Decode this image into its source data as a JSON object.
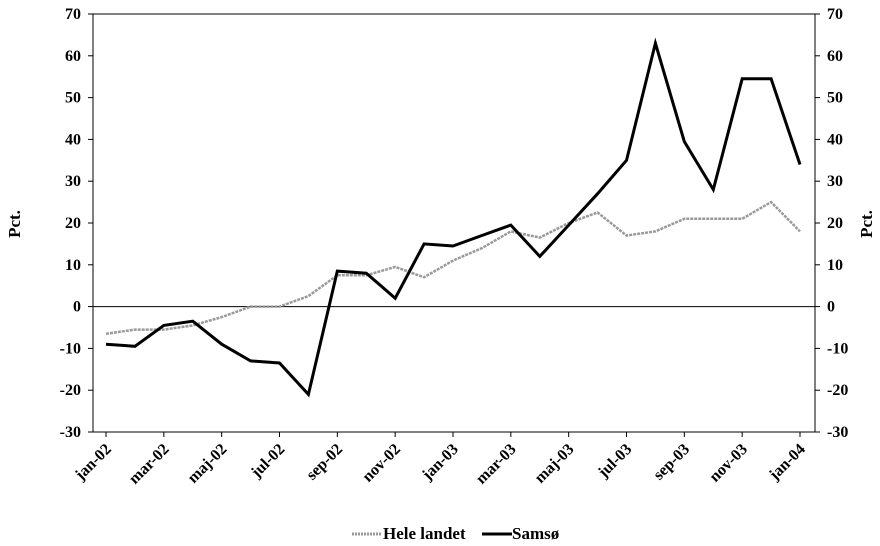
{
  "chart_data": {
    "type": "line",
    "title": "",
    "ylabel_left": "Pct.",
    "ylabel_right": "Pct.",
    "ylim": [
      -30,
      70
    ],
    "yticks": [
      -30,
      -20,
      -10,
      0,
      10,
      20,
      30,
      40,
      50,
      60,
      70
    ],
    "yticks_right": [
      -30,
      -20,
      -10,
      0,
      10,
      20,
      30,
      40,
      50,
      60,
      70
    ],
    "x_labels": [
      "jan-02",
      "mar-02",
      "maj-02",
      "jul-02",
      "sep-02",
      "nov-02",
      "jan-03",
      "mar-03",
      "maj-03",
      "jul-03",
      "sep-03",
      "nov-03",
      "jan-04"
    ],
    "x": [
      "jan-02",
      "feb-02",
      "mar-02",
      "apr-02",
      "maj-02",
      "jun-02",
      "jul-02",
      "aug-02",
      "sep-02",
      "okt-02",
      "nov-02",
      "dec-02",
      "jan-03",
      "feb-03",
      "mar-03",
      "apr-03",
      "maj-03",
      "jun-03",
      "jul-03",
      "aug-03",
      "sep-03",
      "okt-03",
      "nov-03",
      "dec-03",
      "jan-04"
    ],
    "series": [
      {
        "name": "Hele landet",
        "color": "#9a9a9a",
        "values": [
          -6.5,
          -5.5,
          -5.5,
          -4.5,
          -2.5,
          0,
          0,
          2.5,
          7.5,
          7.5,
          9.5,
          7,
          11,
          14,
          18,
          16.5,
          20,
          22.5,
          17,
          18,
          21,
          21,
          21,
          25,
          18
        ]
      },
      {
        "name": "Samsø",
        "color": "#000000",
        "values": [
          -9,
          -9.5,
          -4.5,
          -3.5,
          -9,
          -13,
          -13.5,
          -21,
          8.5,
          8,
          2,
          15,
          14.5,
          17,
          19.5,
          12,
          19.5,
          27,
          35,
          63,
          39.5,
          28,
          54.5,
          54.5,
          34
        ]
      }
    ],
    "legend_position": "bottom-center",
    "grid": false
  }
}
